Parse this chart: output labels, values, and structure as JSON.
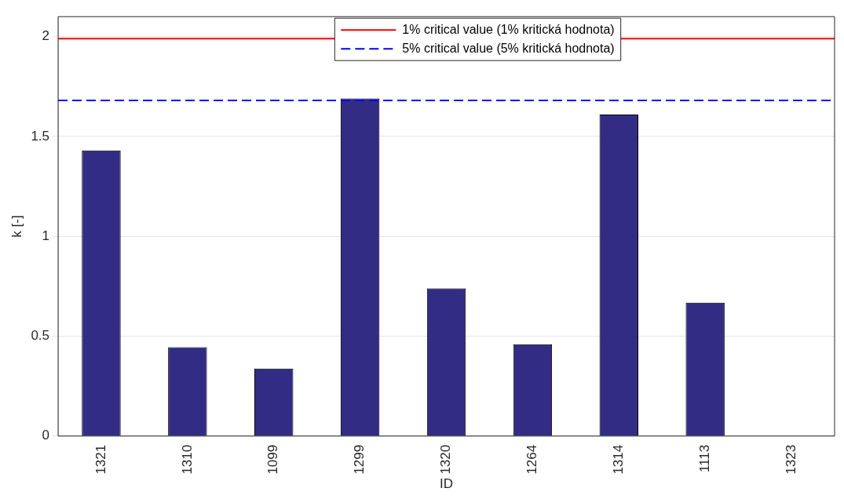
{
  "chart_data": {
    "type": "bar",
    "xlabel": "ID",
    "ylabel": "k [-]",
    "categories": [
      "1321",
      "1310",
      "1099",
      "1299",
      "1320",
      "1264",
      "1314",
      "1113",
      "1323"
    ],
    "values": [
      1.43,
      0.445,
      0.338,
      1.69,
      0.74,
      0.46,
      1.61,
      0.668,
      0
    ],
    "color": "#332c85",
    "ylim": [
      0,
      2.1
    ],
    "yticks": [
      0,
      0.5,
      1,
      1.5,
      2
    ],
    "grid": "y",
    "legend": "top",
    "ref_lines": [
      {
        "axis": "y",
        "value": 1.99,
        "label": "1% critical value (1% kritická hodnota)",
        "color": "#ff0000",
        "line_style": "solid"
      },
      {
        "axis": "y",
        "value": 1.68,
        "label": "5% critical value (5% kritická hodnota)",
        "color": "#0000ff",
        "line_style": "dashed"
      }
    ]
  }
}
